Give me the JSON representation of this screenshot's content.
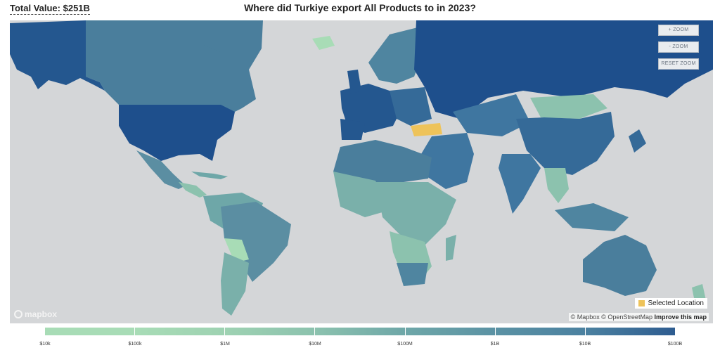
{
  "header": {
    "total_value": "Total Value: $251B",
    "title": "Where did Turkiye export All Products to in 2023?"
  },
  "controls": {
    "zoom_in": "+ ZOOM",
    "zoom_out": "- ZOOM",
    "reset_zoom": "RESET ZOOM"
  },
  "map": {
    "selected_location": "Turkiye",
    "legend_label": "Selected Location",
    "selected_color": "#eec35a",
    "ocean_color": "#d4d6d8"
  },
  "attribution": {
    "mapbox": "© Mapbox",
    "osm": "© OpenStreetMap",
    "improve": "Improve this map",
    "logo": "mapbox"
  },
  "color_scale": {
    "colors": [
      "#a8dcb6",
      "#a8dcb6",
      "#9ed2b2",
      "#8cc2ae",
      "#6ea7a8",
      "#5b92a4",
      "#4b81a0",
      "#2e5c90"
    ],
    "ticks": [
      "$10k",
      "$100k",
      "$1M",
      "$10M",
      "$100M",
      "$1B",
      "$10B",
      "$100B"
    ]
  }
}
